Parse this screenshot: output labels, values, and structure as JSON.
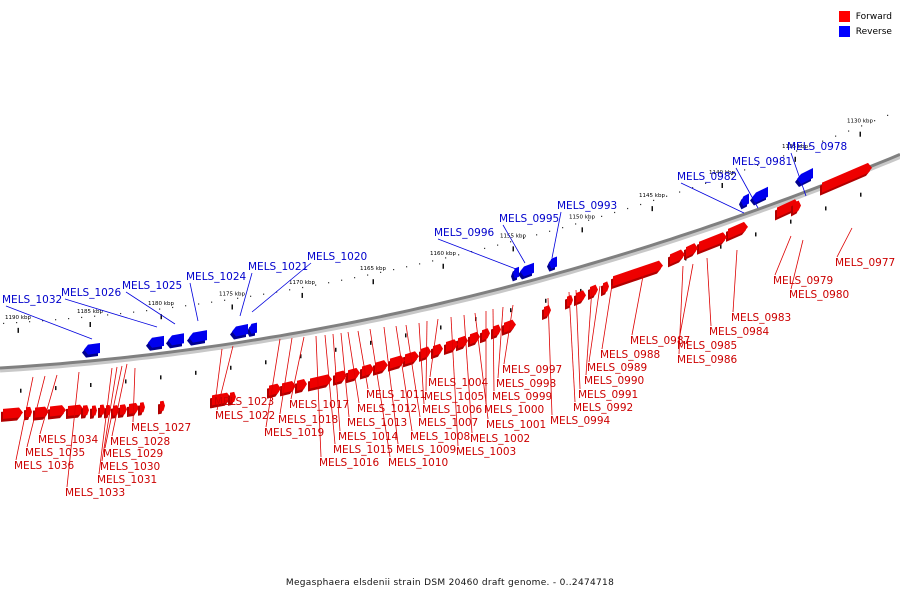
{
  "caption": "Megasphaera elsdenii strain DSM 20460 draft genome. - 0..2474718",
  "legend": [
    {
      "label": "Forward",
      "color": "#ff0000"
    },
    {
      "label": "Reverse",
      "color": "#0000ff"
    }
  ],
  "colors": {
    "forward": "#ee0000",
    "reverse": "#0000ee",
    "backbone": "#808080",
    "forward_text": "#cc0000",
    "reverse_text": "#0000cc"
  },
  "scale_labels": [
    "1130 kbp",
    "1135 kbp",
    "1140 kbp",
    "1145 kbp",
    "1150 kbp",
    "1155 kbp",
    "1160 kbp",
    "1165 kbp",
    "1170 kbp",
    "1175 kbp",
    "1180 kbp",
    "1185 kbp",
    "1190 kbp"
  ],
  "forward_genes": [
    "MELS_0977",
    "MELS_0979",
    "MELS_0980",
    "MELS_0983",
    "MELS_0984",
    "MELS_0985",
    "MELS_0986",
    "MELS_0987",
    "MELS_0988",
    "MELS_0989",
    "MELS_0990",
    "MELS_0991",
    "MELS_0992",
    "MELS_0994",
    "MELS_0997",
    "MELS_0998",
    "MELS_0999",
    "MELS_1000",
    "MELS_1001",
    "MELS_1002",
    "MELS_1003",
    "MELS_1004",
    "MELS_1005",
    "MELS_1006",
    "MELS_1007",
    "MELS_1008",
    "MELS_1009",
    "MELS_1010",
    "MELS_1011",
    "MELS_1012",
    "MELS_1013",
    "MELS_1014",
    "MELS_1015",
    "MELS_1016",
    "MELS_1017",
    "MELS_1018",
    "MELS_1019",
    "MELS_1022",
    "MELS_1023",
    "MELS_1027",
    "MELS_1028",
    "MELS_1029",
    "MELS_1030",
    "MELS_1031",
    "MELS_1033",
    "MELS_1034",
    "MELS_1035",
    "MELS_1036"
  ],
  "reverse_genes": [
    "MELS_0978",
    "MELS_0981",
    "MELS_0982",
    "MELS_0993",
    "MELS_0995",
    "MELS_0996",
    "MELS_1020",
    "MELS_1021",
    "MELS_1024",
    "MELS_1025",
    "MELS_1026",
    "MELS_1032"
  ]
}
